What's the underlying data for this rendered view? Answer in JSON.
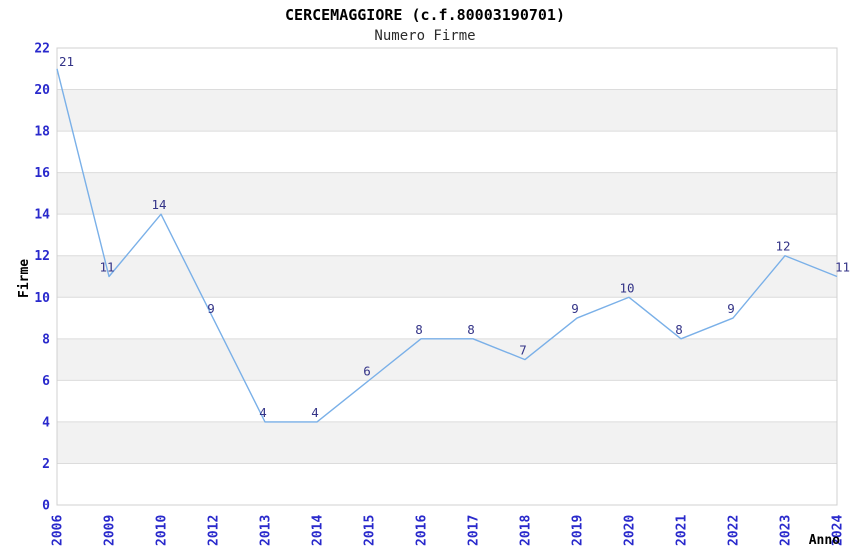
{
  "chart_data": {
    "type": "line",
    "title": "CERCEMAGGIORE (c.f.80003190701)",
    "subtitle": "Numero Firme",
    "xlabel": "Anno",
    "ylabel": "Firme",
    "categories": [
      "2006",
      "2009",
      "2010",
      "2012",
      "2013",
      "2014",
      "2015",
      "2016",
      "2017",
      "2018",
      "2019",
      "2020",
      "2021",
      "2022",
      "2023",
      "2024"
    ],
    "values": [
      21,
      11,
      14,
      9,
      4,
      4,
      6,
      8,
      8,
      7,
      9,
      10,
      8,
      9,
      12,
      11
    ],
    "ylim": [
      0,
      22
    ],
    "ytick_step": 2,
    "yticks": [
      0,
      2,
      4,
      6,
      8,
      10,
      12,
      14,
      16,
      18,
      20,
      22
    ],
    "grid": true,
    "legend_position": "none",
    "colors": {
      "line": "#7ab0e8",
      "axis_tick_label": "#2929cc",
      "point_label": "#333387",
      "band_fill": "#f2f2f2",
      "gridline": "#dcdcdc",
      "plot_border": "#d0d0d0",
      "axis_title": "#000000",
      "background": "#ffffff"
    }
  }
}
